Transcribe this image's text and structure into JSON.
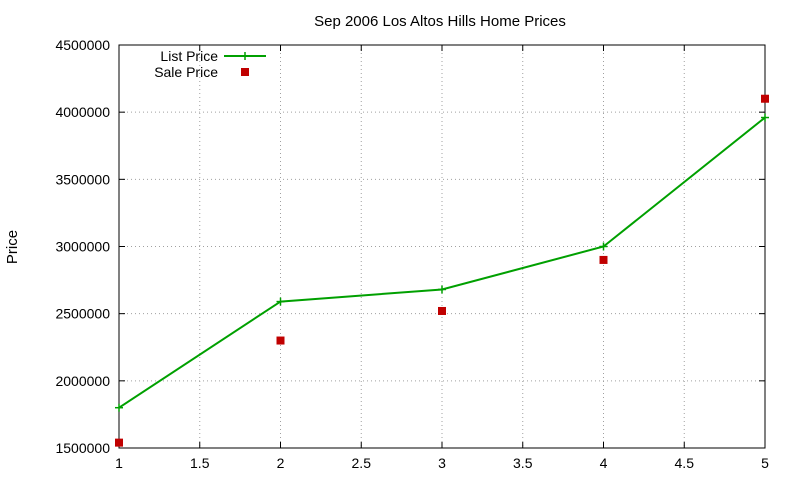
{
  "chart_data": {
    "type": "line",
    "title": "Sep 2006 Los Altos Hills Home Prices",
    "xlabel": "",
    "ylabel": "Price",
    "xlim": [
      1,
      5
    ],
    "ylim": [
      1500000,
      4500000
    ],
    "x_ticks": [
      "1",
      "1.5",
      "2",
      "2.5",
      "3",
      "3.5",
      "4",
      "4.5",
      "5"
    ],
    "y_ticks": [
      "1500000",
      "2000000",
      "2500000",
      "3000000",
      "3500000",
      "4000000",
      "4500000"
    ],
    "grid": true,
    "legend_position": "top-left",
    "series": [
      {
        "name": "List Price",
        "style": "linespoints",
        "marker": "plus",
        "color": "#00a000",
        "x": [
          1,
          2,
          3,
          4,
          5
        ],
        "y": [
          1800000,
          2590000,
          2680000,
          3000000,
          3960000
        ]
      },
      {
        "name": "Sale Price",
        "style": "points",
        "marker": "square",
        "color": "#c00000",
        "x": [
          1,
          2,
          3,
          4,
          5
        ],
        "y": [
          1540000,
          2300000,
          2520000,
          2900000,
          4100000
        ]
      }
    ]
  }
}
